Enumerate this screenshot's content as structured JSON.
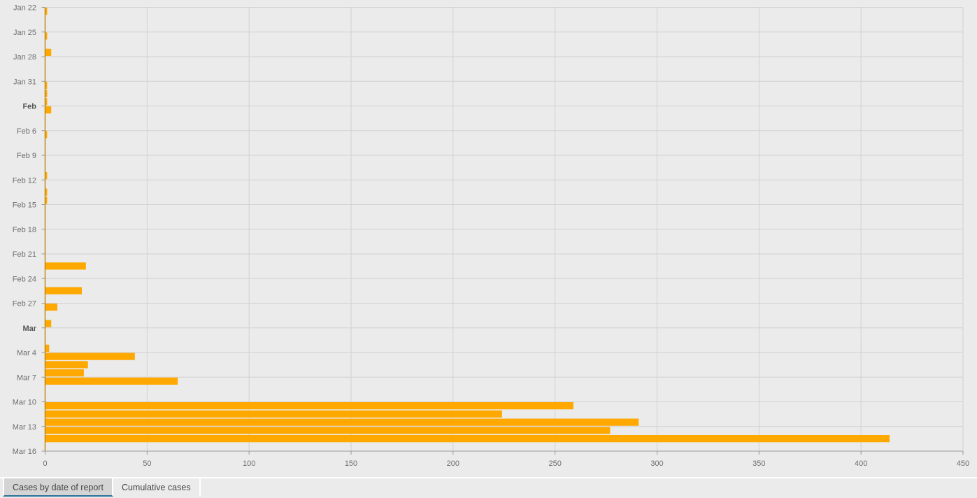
{
  "chart_data": {
    "type": "bar",
    "orientation": "horizontal",
    "title": "",
    "xlabel": "",
    "ylabel": "",
    "xlim": [
      0,
      450
    ],
    "x_ticks": [
      0,
      50,
      100,
      150,
      200,
      250,
      300,
      350,
      400,
      450
    ],
    "y_tick_labels": [
      "Jan 22",
      "Jan 25",
      "Jan 28",
      "Jan 31",
      "Feb",
      "Feb 6",
      "Feb 9",
      "Feb 12",
      "Feb 15",
      "Feb 18",
      "Feb 21",
      "Feb 24",
      "Feb 27",
      "Mar",
      "Mar 4",
      "Mar 7",
      "Mar 10",
      "Mar 13",
      "Mar 16"
    ],
    "bold_tick_labels": [
      "Feb",
      "Mar"
    ],
    "grid": true,
    "bar_color": "#ffa800",
    "data": [
      {
        "date": "Jan 22",
        "value": 1
      },
      {
        "date": "Jan 25",
        "value": 1
      },
      {
        "date": "Jan 27",
        "value": 3
      },
      {
        "date": "Jan 31",
        "value": 1
      },
      {
        "date": "Feb 1",
        "value": 1
      },
      {
        "date": "Feb 2",
        "value": 1
      },
      {
        "date": "Feb 3",
        "value": 3
      },
      {
        "date": "Feb 6",
        "value": 1
      },
      {
        "date": "Feb 11",
        "value": 1
      },
      {
        "date": "Feb 13",
        "value": 1
      },
      {
        "date": "Feb 14",
        "value": 1
      },
      {
        "date": "Feb 22",
        "value": 20
      },
      {
        "date": "Feb 25",
        "value": 18
      },
      {
        "date": "Feb 27",
        "value": 6
      },
      {
        "date": "Feb 29",
        "value": 3
      },
      {
        "date": "Mar 3",
        "value": 2
      },
      {
        "date": "Mar 4",
        "value": 44
      },
      {
        "date": "Mar 5",
        "value": 21
      },
      {
        "date": "Mar 6",
        "value": 19
      },
      {
        "date": "Mar 7",
        "value": 65
      },
      {
        "date": "Mar 10",
        "value": 259
      },
      {
        "date": "Mar 11",
        "value": 224
      },
      {
        "date": "Mar 12",
        "value": 291
      },
      {
        "date": "Mar 13",
        "value": 277
      },
      {
        "date": "Mar 14",
        "value": 414
      }
    ]
  },
  "tabs": [
    {
      "label": "Cases by date of report",
      "active": true
    },
    {
      "label": "Cumulative cases",
      "active": false
    }
  ]
}
